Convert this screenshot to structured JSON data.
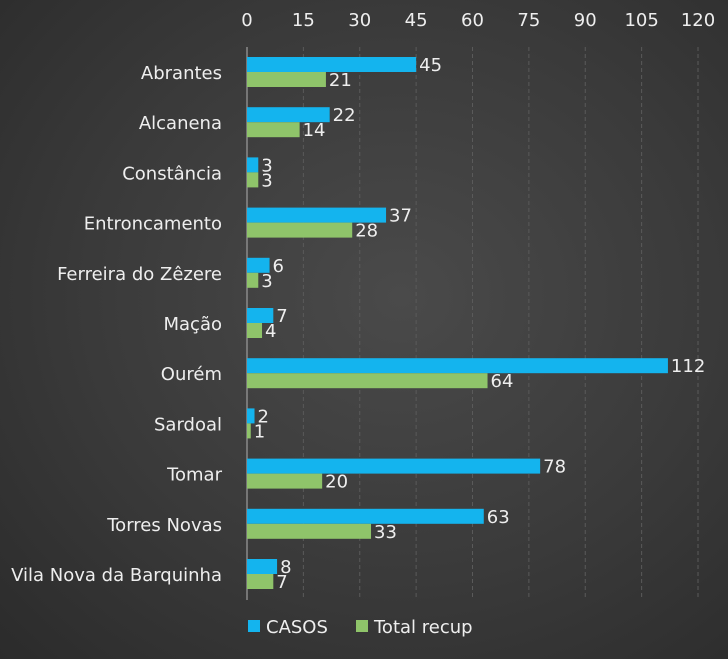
{
  "chart_data": {
    "type": "bar",
    "orientation": "horizontal",
    "categories": [
      "Abrantes",
      "Alcanena",
      "Constância",
      "Entroncamento",
      "Ferreira do Zêzere",
      "Mação",
      "Ourém",
      "Sardoal",
      "Tomar",
      "Torres Novas",
      "Vila Nova da Barquinha"
    ],
    "series": [
      {
        "name": "CASOS",
        "color": "#14b4ee",
        "values": [
          45,
          22,
          3,
          37,
          6,
          7,
          112,
          2,
          78,
          63,
          8
        ]
      },
      {
        "name": "Total recup",
        "color": "#8fc46a",
        "values": [
          21,
          14,
          3,
          28,
          3,
          4,
          64,
          1,
          20,
          33,
          7
        ]
      }
    ],
    "xlim": [
      0,
      120
    ],
    "xticks": [
      0,
      15,
      30,
      45,
      60,
      75,
      90,
      105,
      120
    ],
    "axis_position": "top",
    "grid": true,
    "legend_position": "bottom"
  }
}
